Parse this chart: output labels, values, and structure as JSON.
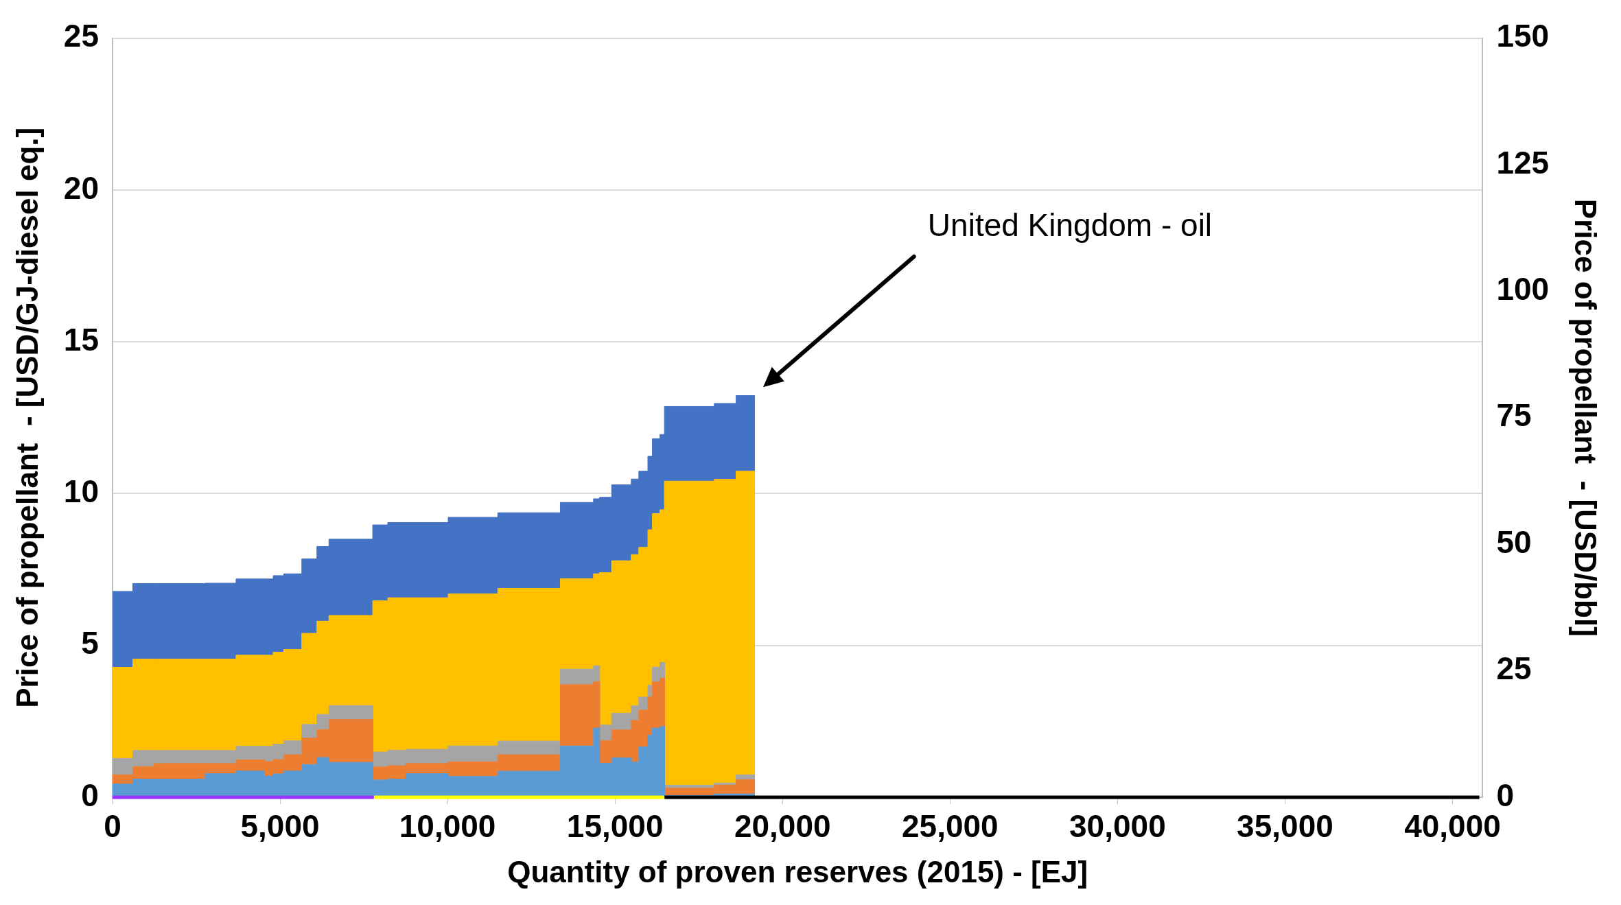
{
  "chart_data": {
    "type": "area",
    "stacked": true,
    "xlabel": "Quantity of proven reserves (2015) - [EJ]",
    "ylabel": "Price of propellant  - [USD/GJ-diesel eq.]",
    "y2label": "Price of propellant  - [USD/bbl]",
    "x": [
      0,
      606,
      606,
      1237,
      1237,
      2767,
      2767,
      3687,
      3687,
      4524,
      4524,
      4795,
      4795,
      5110,
      5110,
      5650,
      5650,
      6101,
      6101,
      6460,
      6460,
      7766,
      7766,
      8217,
      8217,
      8757,
      8757,
      10019,
      10019,
      11500,
      11500,
      13367,
      13367,
      14358,
      14358,
      14538,
      14538,
      14899,
      14899,
      15484,
      15484,
      15710,
      15710,
      15980,
      15980,
      16115,
      16115,
      16340,
      16340,
      16475,
      16475,
      17962,
      17962,
      18611,
      18611,
      19178
    ],
    "series": [
      {
        "color": "#5b9bd5",
        "values": [
          0.44,
          0.44,
          0.6,
          0.6,
          0.6,
          0.6,
          0.78,
          0.78,
          0.87,
          0.87,
          0.7,
          0.7,
          0.77,
          0.77,
          0.87,
          0.87,
          1.08,
          1.08,
          1.31,
          1.31,
          1.15,
          1.15,
          0.57,
          0.57,
          0.6,
          0.6,
          0.78,
          0.78,
          0.69,
          0.69,
          0.86,
          0.86,
          1.69,
          1.69,
          2.28,
          2.28,
          1.12,
          1.12,
          1.3,
          1.3,
          1.16,
          1.16,
          1.66,
          1.66,
          2.04,
          2.04,
          2.28,
          2.28,
          2.33,
          2.33,
          0.06,
          0.06,
          0.11,
          0.11,
          0.11,
          0.11
        ]
      },
      {
        "color": "#ed7d31",
        "values": [
          0.3,
          0.3,
          0.41,
          0.41,
          0.51,
          0.51,
          0.33,
          0.33,
          0.36,
          0.36,
          0.48,
          0.48,
          0.47,
          0.47,
          0.53,
          0.53,
          0.87,
          0.87,
          0.92,
          0.92,
          1.41,
          1.41,
          0.43,
          0.43,
          0.44,
          0.44,
          0.33,
          0.33,
          0.48,
          0.48,
          0.54,
          0.54,
          2.02,
          2.02,
          1.53,
          1.53,
          0.75,
          0.75,
          0.92,
          0.92,
          1.37,
          1.37,
          1.21,
          1.21,
          1.26,
          1.26,
          1.52,
          1.52,
          1.6,
          1.6,
          0.24,
          0.24,
          0.29,
          0.29,
          0.47,
          0.47
        ]
      },
      {
        "color": "#a5a5a5",
        "values": [
          0.54,
          0.54,
          0.53,
          0.53,
          0.43,
          0.43,
          0.43,
          0.43,
          0.45,
          0.45,
          0.5,
          0.5,
          0.51,
          0.51,
          0.46,
          0.46,
          0.45,
          0.45,
          0.5,
          0.5,
          0.46,
          0.46,
          0.49,
          0.49,
          0.51,
          0.51,
          0.47,
          0.47,
          0.52,
          0.52,
          0.45,
          0.45,
          0.51,
          0.51,
          0.52,
          0.52,
          0.51,
          0.51,
          0.55,
          0.55,
          0.48,
          0.48,
          0.43,
          0.43,
          0.39,
          0.39,
          0.49,
          0.49,
          0.51,
          0.51,
          0.1,
          0.1,
          0.07,
          0.07,
          0.16,
          0.16
        ]
      },
      {
        "color": "#ffc000",
        "values": [
          3.0,
          3.0,
          3.01,
          3.01,
          3.01,
          3.01,
          3.01,
          3.01,
          3.0,
          3.0,
          3.0,
          3.0,
          3.03,
          3.03,
          3.01,
          3.01,
          3.0,
          3.0,
          3.07,
          3.07,
          2.97,
          2.97,
          4.98,
          4.98,
          5.02,
          5.02,
          4.99,
          4.99,
          5.01,
          5.01,
          5.03,
          5.03,
          2.98,
          2.98,
          3.03,
          3.03,
          5.02,
          5.02,
          5.02,
          5.02,
          4.98,
          4.98,
          4.93,
          4.93,
          5.12,
          5.12,
          5.05,
          5.05,
          5.03,
          5.03,
          10.01,
          10.01,
          10.0,
          10.0,
          10.0,
          10.0
        ]
      },
      {
        "color": "#4472c4",
        "values": [
          2.5,
          2.5,
          2.49,
          2.49,
          2.49,
          2.49,
          2.5,
          2.5,
          2.51,
          2.51,
          2.51,
          2.51,
          2.52,
          2.52,
          2.49,
          2.49,
          2.45,
          2.45,
          2.46,
          2.46,
          2.51,
          2.51,
          2.5,
          2.5,
          2.48,
          2.48,
          2.48,
          2.48,
          2.52,
          2.52,
          2.49,
          2.49,
          2.51,
          2.51,
          2.47,
          2.47,
          2.48,
          2.48,
          2.5,
          2.5,
          2.49,
          2.49,
          2.51,
          2.51,
          2.42,
          2.42,
          2.47,
          2.47,
          2.48,
          2.48,
          2.46,
          2.46,
          2.5,
          2.5,
          2.49,
          2.49
        ]
      },
      {
        "type": "line",
        "color": "#9933ff",
        "x": [
          0,
          7800
        ],
        "values": [
          0,
          0
        ]
      },
      {
        "type": "line",
        "color": "#ffff00",
        "x": [
          7800,
          16475
        ],
        "values": [
          0,
          0
        ]
      },
      {
        "type": "line",
        "color": "#000000",
        "x": [
          16475,
          40800
        ],
        "values": [
          0,
          0
        ]
      }
    ],
    "xlim": [
      0,
      40900
    ],
    "xticks": [
      0,
      {
        "value": 5000,
        "label": "5,000"
      },
      {
        "value": 10000,
        "label": "10,000"
      },
      {
        "value": 15000,
        "label": "15,000"
      },
      {
        "value": 20000,
        "label": "20,000"
      },
      {
        "value": 25000,
        "label": "25,000"
      },
      {
        "value": 30000,
        "label": "30,000"
      },
      {
        "value": 35000,
        "label": "35,000"
      },
      {
        "value": 40000,
        "label": "40,000"
      }
    ],
    "ylim": [
      0,
      25
    ],
    "yticks": [
      0,
      5,
      10,
      15,
      20,
      25
    ],
    "y2lim": [
      0,
      150
    ],
    "y2ticks": [
      0,
      25,
      50,
      75,
      100,
      125,
      150
    ],
    "grid": "y",
    "legend": false,
    "annotations": [
      "United Kingdom - oil"
    ]
  }
}
